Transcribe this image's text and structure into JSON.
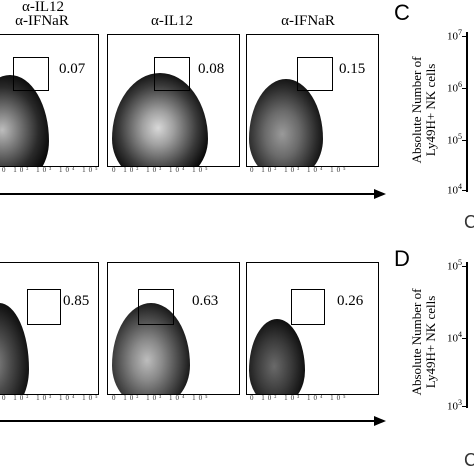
{
  "columns": [
    {
      "title_line1": "α-IL12",
      "title_line2": "α-IFNaR"
    },
    {
      "title_line1": "α-IL12",
      "title_line2": ""
    },
    {
      "title_line1": "α-IFNaR",
      "title_line2": ""
    }
  ],
  "top_row": {
    "gates": [
      "0.07",
      "0.08",
      "0.15"
    ]
  },
  "bottom_row": {
    "gates": [
      "0.85",
      "0.63",
      "0.26"
    ]
  },
  "x_tick_labels": "0 10² 10³ 10⁴ 10⁵",
  "panel_c": {
    "letter": "C",
    "ylabel_line1": "Absolute Number of",
    "ylabel_line2": "Ly49H+ NK cells",
    "yticks": [
      "10",
      "10",
      "10",
      "10"
    ],
    "ytick_exps": [
      "7",
      "6",
      "5",
      "4"
    ]
  },
  "panel_d": {
    "letter": "D",
    "ylabel_line1": "Absolute Number of",
    "ylabel_line2": "Ly49H+ NK cells",
    "yticks": [
      "10",
      "10",
      "10"
    ],
    "ytick_exps": [
      "5",
      "4",
      "3"
    ]
  },
  "colors": {
    "ink": "#000000",
    "cloud_dark": "#1a1a1a",
    "cloud_light": "#cfcfcf"
  }
}
